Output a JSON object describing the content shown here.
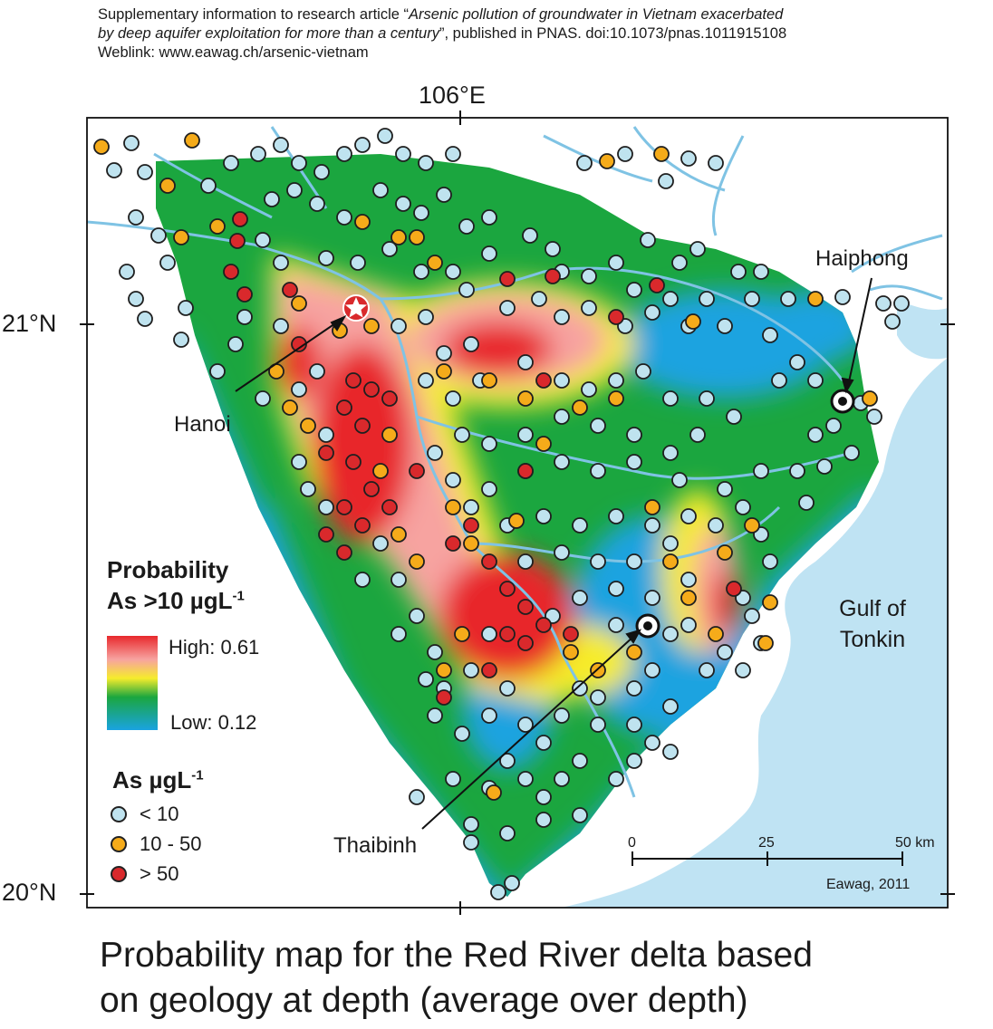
{
  "header": {
    "line1_a": "Supplementary information to research article “",
    "line1_italic": "Arsenic pollution of groundwater in Vietnam exacerbated",
    "line2_italic": "by deep aquifer exploitation for more than a century",
    "line2_b": "”, published in PNAS. doi:10.1073/pnas.1011915108",
    "line3": "Weblink: www.eawag.ch/arsenic-vietnam"
  },
  "axes": {
    "lon_label": "106°E",
    "lat_top": "21°N",
    "lat_bottom": "20°N"
  },
  "legend": {
    "prob_title_1": "Probability",
    "prob_title_2": "As >10 µgL",
    "prob_title_sup": "-1",
    "high_label": "High:  0.61",
    "low_label": "Low:  0.12",
    "conc_title": "As µgL",
    "conc_sup": "-1",
    "items": [
      {
        "label": "< 10",
        "color": "#bfe3ef"
      },
      {
        "label": "10 - 50",
        "color": "#f5ab1a"
      },
      {
        "label": "> 50",
        "color": "#d9292c"
      }
    ]
  },
  "labels": {
    "haiphong": "Haiphong",
    "hanoi": "Hanoi",
    "thaibinh": "Thaibinh",
    "gulf_1": "Gulf of",
    "gulf_2": "Tonkin"
  },
  "scale": {
    "ticks": [
      "0",
      "25",
      "50 km"
    ]
  },
  "credit": "Eawag, 2011",
  "caption": {
    "line1": "Probability map for the Red River delta based",
    "line2": "on geology at depth (average over depth)"
  },
  "colors": {
    "sea": "#bfe3f3",
    "high": "#e8282c",
    "mid": "#f6ec2c",
    "green": "#1ba63f",
    "low": "#1aa3e0",
    "dot_low": "#bfe3ef",
    "dot_mid": "#f5ab1a",
    "dot_high": "#d9292c"
  }
}
